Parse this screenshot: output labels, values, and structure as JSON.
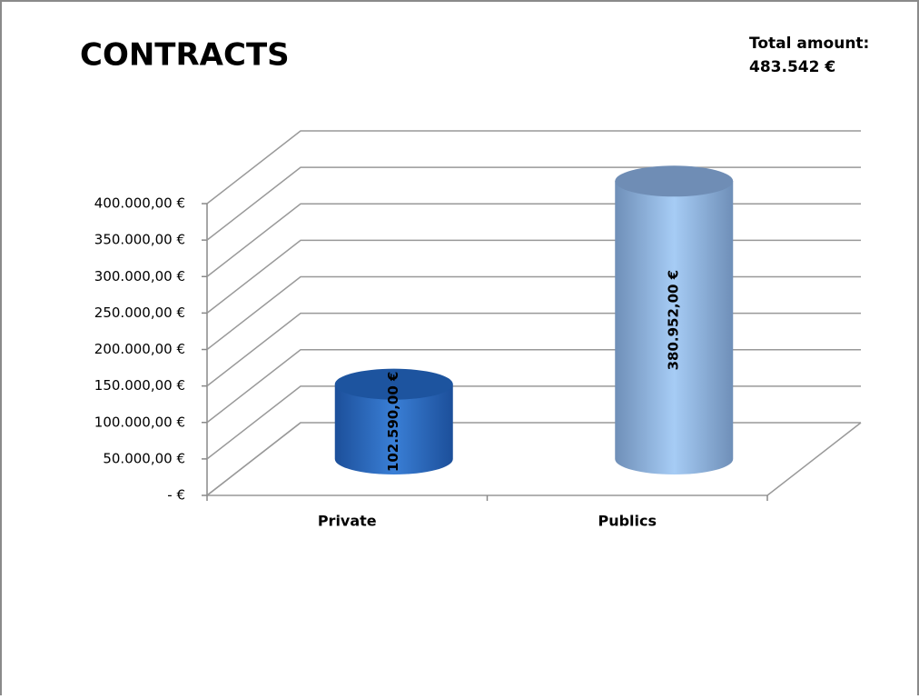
{
  "chart_data": {
    "type": "bar3d",
    "title": "CONTRACTS",
    "annotations": [
      "Total amount:",
      "483.542 €"
    ],
    "categories": [
      "Private",
      "Publics"
    ],
    "values": [
      102590,
      380952
    ],
    "value_labels": [
      "102.590,00 €",
      "380.952,00 €"
    ],
    "colors": [
      "#2f6fc4",
      "#8fb6e8"
    ],
    "ylim": [
      0,
      400000
    ],
    "yticks": [
      {
        "value": 0,
        "label": "-  €"
      },
      {
        "value": 50000,
        "label": "50.000,00 €"
      },
      {
        "value": 100000,
        "label": "100.000,00 €"
      },
      {
        "value": 150000,
        "label": "150.000,00 €"
      },
      {
        "value": 200000,
        "label": "200.000,00 €"
      },
      {
        "value": 250000,
        "label": "250.000,00 €"
      },
      {
        "value": 300000,
        "label": "300.000,00 €"
      },
      {
        "value": 350000,
        "label": "350.000,00 €"
      },
      {
        "value": 400000,
        "label": "400.000,00 €"
      }
    ],
    "grid": true
  }
}
